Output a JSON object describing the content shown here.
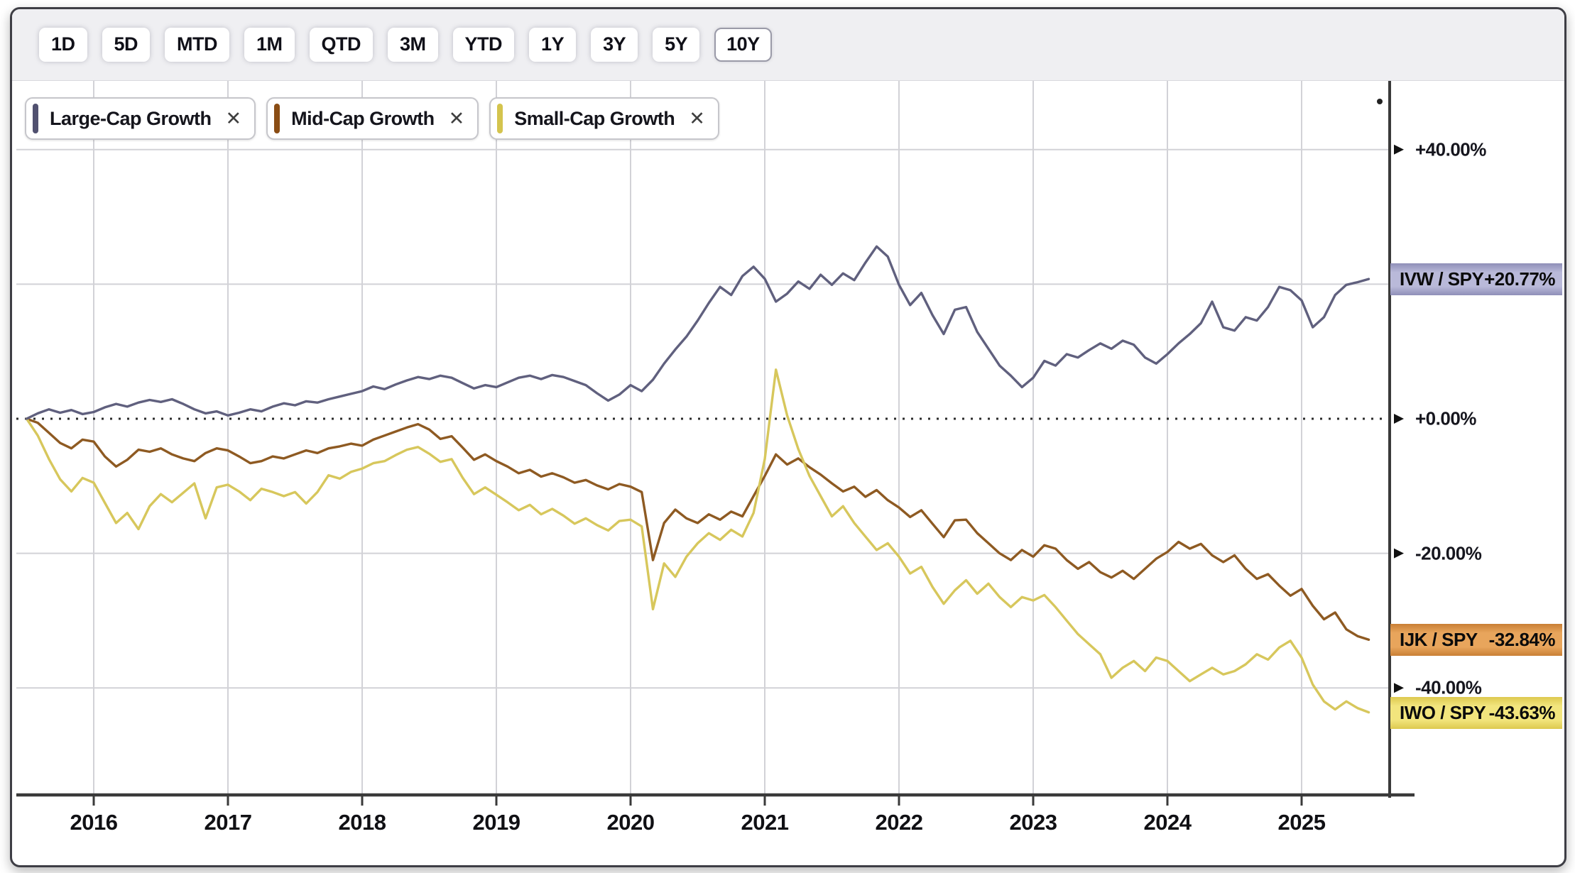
{
  "toolbar": {
    "ranges": [
      "1D",
      "5D",
      "MTD",
      "1M",
      "QTD",
      "3M",
      "YTD",
      "1Y",
      "3Y",
      "5Y",
      "10Y"
    ],
    "selected": "10Y"
  },
  "legend_chips": [
    {
      "label": "Large-Cap Growth",
      "close": "✕",
      "color": "#515170"
    },
    {
      "label": "Mid-Cap Growth",
      "close": "✕",
      "color": "#8a4d15"
    },
    {
      "label": "Small-Cap Growth",
      "close": "✕",
      "color": "#d4c44e"
    }
  ],
  "chart_data": {
    "type": "line",
    "title": "",
    "xlabel": "",
    "ylabel": "",
    "x_start": 2015.5,
    "x_step_years": 0.0833333,
    "x_ticks": [
      2016,
      2017,
      2018,
      2019,
      2020,
      2021,
      2022,
      2023,
      2024,
      2025
    ],
    "y_gridlines": [
      40,
      20,
      -20,
      -40
    ],
    "y_zero_dotted_line": 0,
    "y_ticks": [
      {
        "value": 40,
        "label": "+40.00%"
      },
      {
        "value": 0,
        "label": "+0.00%"
      },
      {
        "value": -20,
        "label": "-20.00%"
      },
      {
        "value": -40,
        "label": "-40.00%"
      }
    ],
    "ylim": [
      -52,
      46
    ],
    "grid": true,
    "legend_position": "top-left",
    "series": [
      {
        "name": "Large-Cap Growth",
        "pair": "IVW / SPY",
        "last_change": "+20.77%",
        "last_value": 20.77,
        "color": "#60607e",
        "label_bg": "#b9b9d9",
        "label_bg_edge": "#8f8fb8",
        "values": [
          0.0,
          0.8,
          1.4,
          0.9,
          1.3,
          0.7,
          1.0,
          1.7,
          2.2,
          1.8,
          2.4,
          2.8,
          2.5,
          2.9,
          2.2,
          1.4,
          0.8,
          1.1,
          0.5,
          0.9,
          1.4,
          1.1,
          1.8,
          2.3,
          2.0,
          2.6,
          2.4,
          2.9,
          3.3,
          3.7,
          4.1,
          4.8,
          4.4,
          5.1,
          5.7,
          6.2,
          5.9,
          6.4,
          6.1,
          5.3,
          4.5,
          5.0,
          4.7,
          5.4,
          6.1,
          6.4,
          5.9,
          6.5,
          6.2,
          5.6,
          5.0,
          3.8,
          2.7,
          3.6,
          5.0,
          4.1,
          5.8,
          8.2,
          10.3,
          12.2,
          14.6,
          17.2,
          19.6,
          18.4,
          21.2,
          22.6,
          20.8,
          17.4,
          18.6,
          20.4,
          19.3,
          21.4,
          19.9,
          21.6,
          20.6,
          23.2,
          25.6,
          24.1,
          19.9,
          16.9,
          18.7,
          15.4,
          12.6,
          16.2,
          16.6,
          12.9,
          10.4,
          7.9,
          6.4,
          4.7,
          6.1,
          8.6,
          7.9,
          9.6,
          9.1,
          10.2,
          11.2,
          10.4,
          11.6,
          11.0,
          9.1,
          8.2,
          9.6,
          11.2,
          12.6,
          14.2,
          17.4,
          13.6,
          13.1,
          15.1,
          14.6,
          16.6,
          19.6,
          19.1,
          17.6,
          13.6,
          15.1,
          18.4,
          19.9,
          20.3,
          20.77
        ]
      },
      {
        "name": "Mid-Cap Growth",
        "pair": "IJK / SPY",
        "last_change": "-32.84%",
        "last_value": -32.84,
        "color": "#8e5a22",
        "label_bg": "#e8a55c",
        "label_bg_edge": "#c97f35",
        "values": [
          0.0,
          -0.6,
          -2.1,
          -3.6,
          -4.4,
          -3.1,
          -3.4,
          -5.6,
          -7.1,
          -6.1,
          -4.6,
          -4.9,
          -4.4,
          -5.3,
          -5.9,
          -6.3,
          -5.1,
          -4.4,
          -4.7,
          -5.6,
          -6.6,
          -6.3,
          -5.6,
          -5.9,
          -5.3,
          -4.7,
          -5.1,
          -4.4,
          -4.1,
          -3.7,
          -4.0,
          -3.1,
          -2.5,
          -1.9,
          -1.3,
          -0.8,
          -1.6,
          -3.0,
          -2.6,
          -4.3,
          -6.1,
          -5.3,
          -6.3,
          -7.1,
          -8.1,
          -7.6,
          -8.6,
          -8.1,
          -8.7,
          -9.5,
          -9.1,
          -9.9,
          -10.5,
          -9.7,
          -10.1,
          -10.9,
          -21.0,
          -15.5,
          -13.5,
          -14.8,
          -15.5,
          -14.2,
          -15.0,
          -13.8,
          -14.5,
          -11.5,
          -8.5,
          -5.3,
          -6.8,
          -5.9,
          -7.2,
          -8.3,
          -9.6,
          -10.8,
          -10.1,
          -11.6,
          -10.6,
          -12.1,
          -13.2,
          -14.6,
          -13.6,
          -15.6,
          -17.6,
          -15.1,
          -15.0,
          -17.0,
          -18.5,
          -20.0,
          -21.0,
          -19.5,
          -20.5,
          -18.8,
          -19.3,
          -21.0,
          -22.3,
          -21.3,
          -22.8,
          -23.6,
          -22.6,
          -23.8,
          -22.3,
          -20.8,
          -19.8,
          -18.3,
          -19.3,
          -18.6,
          -20.3,
          -21.3,
          -20.3,
          -22.3,
          -23.8,
          -23.1,
          -24.8,
          -26.3,
          -25.3,
          -27.8,
          -29.8,
          -28.8,
          -31.3,
          -32.3,
          -32.84
        ]
      },
      {
        "name": "Small-Cap Growth",
        "pair": "IWO / SPY",
        "last_change": "-43.63%",
        "last_value": -43.63,
        "color": "#d7c75c",
        "label_bg": "#f2e57d",
        "label_bg_edge": "#ddc94f",
        "values": [
          0.0,
          -2.5,
          -6.0,
          -9.0,
          -10.8,
          -8.8,
          -9.5,
          -12.5,
          -15.5,
          -14.0,
          -16.4,
          -13.0,
          -11.2,
          -12.4,
          -11.0,
          -9.6,
          -14.8,
          -10.2,
          -9.8,
          -10.8,
          -12.1,
          -10.4,
          -10.9,
          -11.5,
          -10.9,
          -12.6,
          -10.9,
          -8.4,
          -8.9,
          -7.9,
          -7.4,
          -6.6,
          -6.3,
          -5.4,
          -4.6,
          -4.2,
          -5.2,
          -6.4,
          -6.0,
          -8.8,
          -11.2,
          -10.2,
          -11.3,
          -12.4,
          -13.6,
          -12.8,
          -14.2,
          -13.4,
          -14.4,
          -15.6,
          -14.8,
          -15.8,
          -16.6,
          -15.2,
          -15.0,
          -16.0,
          -28.3,
          -21.5,
          -23.5,
          -20.5,
          -18.5,
          -17.0,
          -18.0,
          -16.5,
          -17.5,
          -14.0,
          -6.0,
          7.3,
          0.5,
          -4.5,
          -8.5,
          -11.5,
          -14.5,
          -13.0,
          -15.5,
          -17.5,
          -19.5,
          -18.5,
          -20.5,
          -23.0,
          -22.0,
          -25.0,
          -27.5,
          -25.5,
          -24.0,
          -26.0,
          -24.5,
          -26.5,
          -28.0,
          -26.5,
          -27.0,
          -26.2,
          -28.0,
          -30.0,
          -32.0,
          -33.5,
          -35.0,
          -38.5,
          -37.0,
          -36.0,
          -37.5,
          -35.5,
          -36.0,
          -37.5,
          -39.0,
          -38.0,
          -37.0,
          -38.0,
          -37.5,
          -36.5,
          -35.0,
          -35.8,
          -34.0,
          -33.0,
          -35.5,
          -39.5,
          -42.0,
          -43.2,
          -42.0,
          -43.0,
          -43.63
        ]
      }
    ],
    "colors": {
      "gridline": "#d2d2d7",
      "axis": "#3a3a3a",
      "zero_line": "#2c2c2c",
      "toolbar_bg": "#efeff2"
    }
  }
}
